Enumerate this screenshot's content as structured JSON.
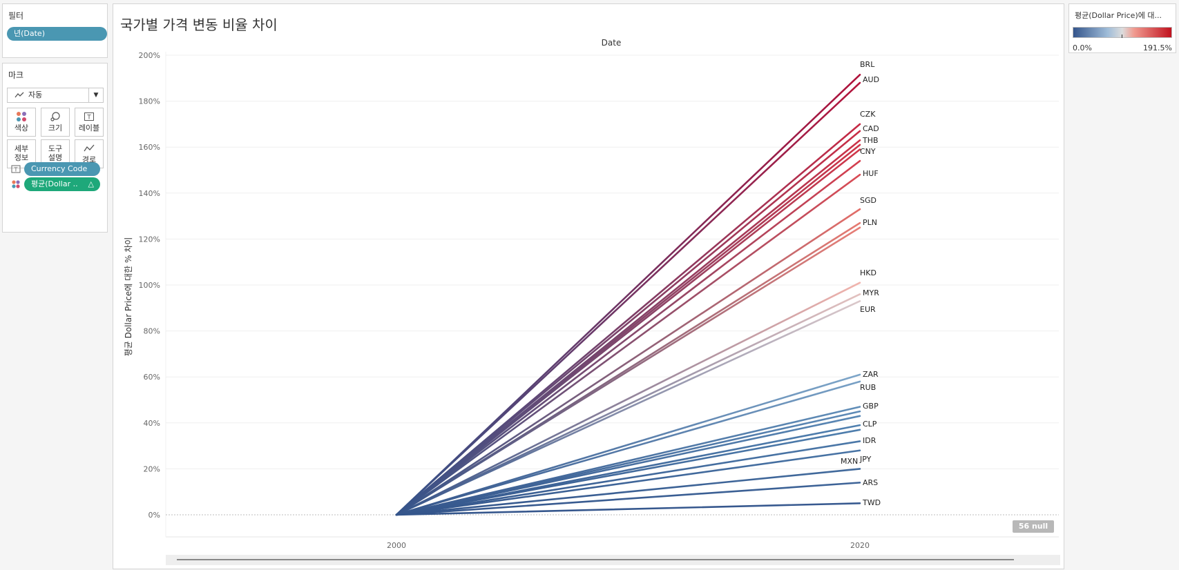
{
  "filters": {
    "title": "필터",
    "items": [
      "년(Date)"
    ]
  },
  "marks": {
    "title": "마크",
    "type_label": "자동",
    "buttons": [
      {
        "name": "color",
        "label": "색상",
        "icon": "color-dots-icon"
      },
      {
        "name": "size",
        "label": "크기",
        "icon": "size-icon"
      },
      {
        "name": "label",
        "label": "레이블",
        "icon": "label-T-icon"
      },
      {
        "name": "detail",
        "label": "세부\n정보",
        "icon": "detail-icon"
      },
      {
        "name": "tooltip",
        "label": "도구\n설명",
        "icon": "tooltip-icon"
      },
      {
        "name": "path",
        "label": "경로",
        "icon": "path-icon"
      }
    ],
    "shelf": [
      {
        "icon": "label-T-icon",
        "label": "Currency Code",
        "color": "#4a97b2"
      },
      {
        "icon": "color-dots-icon",
        "label": "평균(Dollar ..",
        "color": "#1ea87a",
        "delta": "△"
      }
    ]
  },
  "legend": {
    "title": "평균(Dollar Price)에 대...",
    "min_label": "0.0%",
    "max_label": "191.5%",
    "colors": [
      "#34558b",
      "#dcdcdc",
      "#c1121f"
    ]
  },
  "null_badge": "56 null",
  "chart_data": {
    "type": "line",
    "title": "국가별 가격 변동 비율 차이",
    "column_header": "Date",
    "ylabel": "평균 Dollar Price에 대한 % 차이",
    "x": [
      2000,
      2020
    ],
    "x_ticks": [
      "2000",
      "2020"
    ],
    "ylim": [
      0,
      200
    ],
    "y_ticks": [
      "0%",
      "20%",
      "40%",
      "60%",
      "80%",
      "100%",
      "120%",
      "140%",
      "160%",
      "180%",
      "200%"
    ],
    "series": [
      {
        "name": "BRL",
        "values": [
          0,
          191.5
        ]
      },
      {
        "name": "AUD",
        "values": [
          0,
          188
        ]
      },
      {
        "name": "CZK",
        "values": [
          0,
          170
        ]
      },
      {
        "name": "CAD",
        "values": [
          0,
          167
        ]
      },
      {
        "name": "THB",
        "values": [
          0,
          163
        ]
      },
      {
        "name": "",
        "values": [
          0,
          161
        ]
      },
      {
        "name": "CNY",
        "values": [
          0,
          159
        ]
      },
      {
        "name": "HUF",
        "values": [
          0,
          154
        ]
      },
      {
        "name": "",
        "values": [
          0,
          148
        ]
      },
      {
        "name": "SGD",
        "values": [
          0,
          133
        ]
      },
      {
        "name": "PLN",
        "values": [
          0,
          127
        ]
      },
      {
        "name": "",
        "values": [
          0,
          125
        ]
      },
      {
        "name": "HKD",
        "values": [
          0,
          101
        ]
      },
      {
        "name": "MYR",
        "values": [
          0,
          96
        ]
      },
      {
        "name": "EUR",
        "values": [
          0,
          93
        ]
      },
      {
        "name": "ZAR",
        "values": [
          0,
          61
        ]
      },
      {
        "name": "RUB",
        "values": [
          0,
          58
        ]
      },
      {
        "name": "GBP",
        "values": [
          0,
          47
        ]
      },
      {
        "name": "",
        "values": [
          0,
          45
        ]
      },
      {
        "name": "",
        "values": [
          0,
          43
        ]
      },
      {
        "name": "CLP",
        "values": [
          0,
          39
        ]
      },
      {
        "name": "",
        "values": [
          0,
          37
        ]
      },
      {
        "name": "IDR",
        "values": [
          0,
          32
        ]
      },
      {
        "name": "JPY",
        "values": [
          0,
          28
        ]
      },
      {
        "name": "MXN",
        "values": [
          0,
          20
        ]
      },
      {
        "name": "ARS",
        "values": [
          0,
          14
        ]
      },
      {
        "name": "TWD",
        "values": [
          0,
          5
        ]
      }
    ],
    "grid": "horizontal",
    "legend": "right"
  }
}
